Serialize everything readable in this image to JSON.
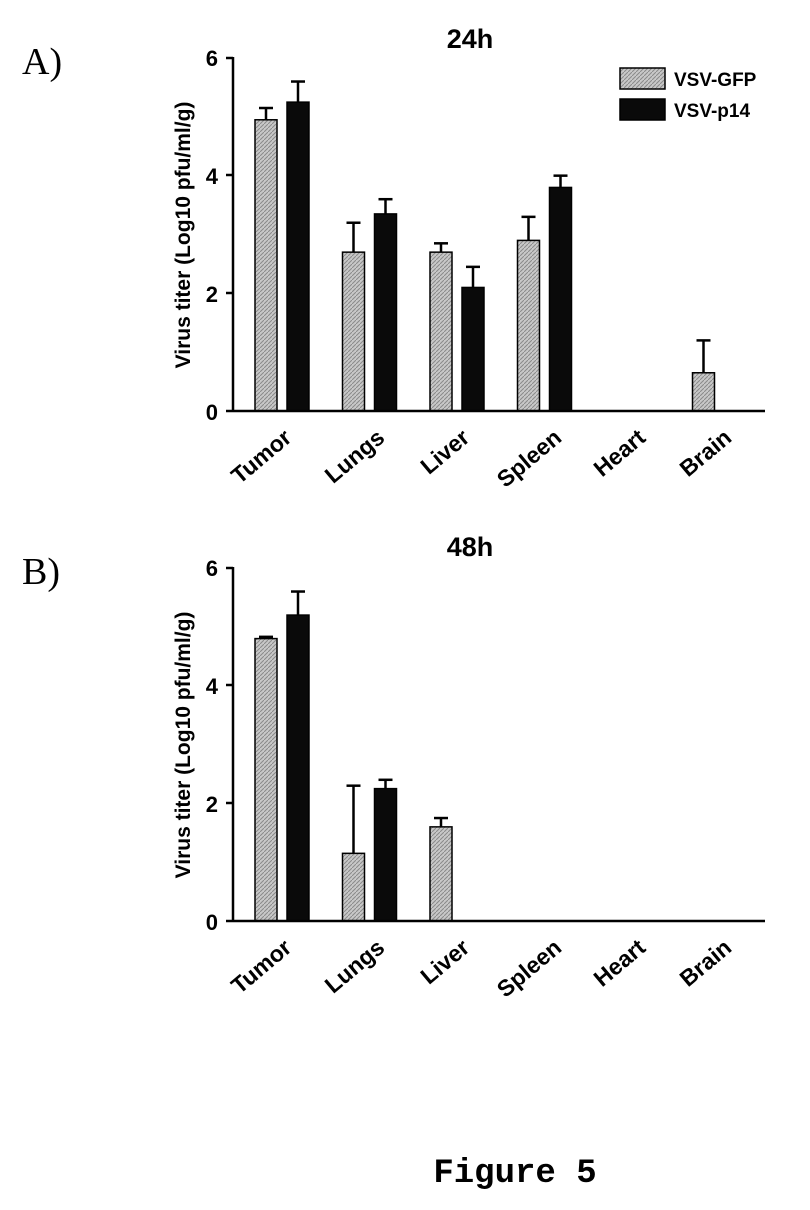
{
  "figure_caption": "Figure 5",
  "colors": {
    "vsv_gfp": "#b4b4b4",
    "vsv_p14": "#0a0a0a"
  },
  "chart_data": [
    {
      "panel_label": "A)",
      "type": "bar",
      "title": "24h",
      "ylabel": "Virus titer (Log10 pfu/ml/g)",
      "ylim": [
        0,
        6
      ],
      "yticks": [
        "0",
        "2",
        "4",
        "6"
      ],
      "categories": [
        "Tumor",
        "Lungs",
        "Liver",
        "Spleen",
        "Heart",
        "Brain"
      ],
      "legend": {
        "position": "top-right"
      },
      "series": [
        {
          "name": "VSV-GFP",
          "values": [
            4.95,
            2.7,
            2.7,
            2.9,
            0,
            0.65
          ],
          "errors": [
            0.2,
            0.5,
            0.15,
            0.4,
            0,
            0.55
          ]
        },
        {
          "name": "VSV-p14",
          "values": [
            5.25,
            3.35,
            2.1,
            3.8,
            0,
            0
          ],
          "errors": [
            0.35,
            0.25,
            0.35,
            0.2,
            0,
            0
          ]
        }
      ]
    },
    {
      "panel_label": "B)",
      "type": "bar",
      "title": "48h",
      "ylabel": "Virus titer (Log10 pfu/ml/g)",
      "ylim": [
        0,
        6
      ],
      "yticks": [
        "0",
        "2",
        "4",
        "6"
      ],
      "categories": [
        "Tumor",
        "Lungs",
        "Liver",
        "Spleen",
        "Heart",
        "Brain"
      ],
      "series": [
        {
          "name": "VSV-GFP",
          "values": [
            4.8,
            1.15,
            1.6,
            0,
            0,
            0
          ],
          "errors": [
            0.03,
            1.15,
            0.15,
            0,
            0,
            0
          ]
        },
        {
          "name": "VSV-p14",
          "values": [
            5.2,
            2.25,
            0,
            0,
            0,
            0
          ],
          "errors": [
            0.4,
            0.15,
            0,
            0,
            0,
            0
          ]
        }
      ]
    }
  ]
}
